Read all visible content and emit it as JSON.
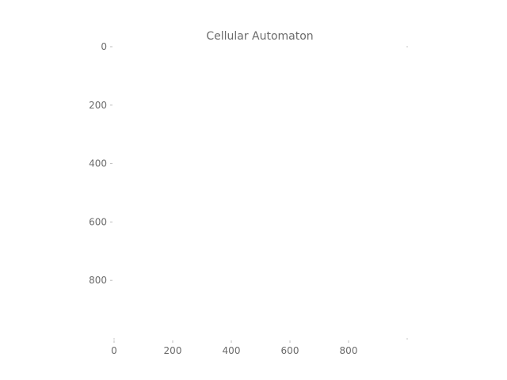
{
  "chart_data": {
    "type": "heatmap",
    "title": "Cellular Automaton",
    "xlabel": "",
    "ylabel": "",
    "xlim": [
      0,
      1000
    ],
    "ylim": [
      0,
      1000
    ],
    "y_inverted": true,
    "x_ticks": [
      0,
      200,
      400,
      600,
      800
    ],
    "x_tick_labels": [
      "0",
      "200",
      "400",
      "600",
      "800"
    ],
    "y_ticks": [
      0,
      200,
      400,
      600,
      800
    ],
    "y_tick_labels": [
      "0",
      "200",
      "400",
      "600",
      "800"
    ],
    "grid": false,
    "cells": []
  }
}
